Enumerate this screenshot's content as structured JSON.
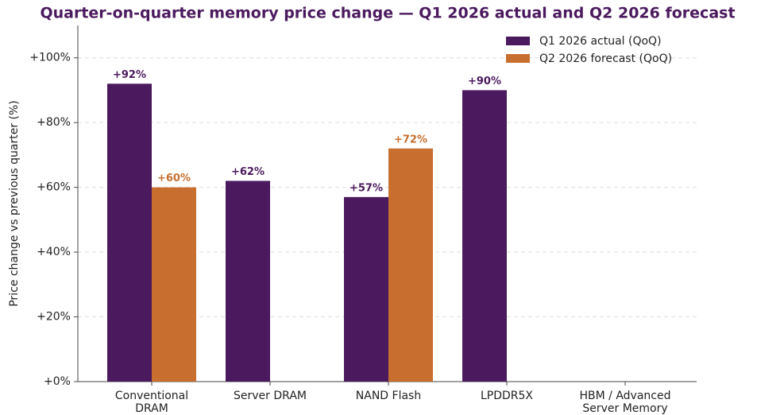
{
  "chart_data": {
    "type": "bar",
    "title": "Quarter-on-quarter memory price change — Q1 2026 actual and Q2 2026 forecast",
    "ylabel": "Price change vs previous quarter (%)",
    "categories": [
      "Conventional DRAM",
      "Server DRAM",
      "NAND Flash",
      "LPDDR5X",
      "HBM / Advanced Server Memory"
    ],
    "series": [
      {
        "name": "Q1 2026 actual (QoQ)",
        "color": "#4b1a5e",
        "values": [
          92,
          62,
          57,
          90,
          null
        ],
        "value_labels": [
          "+92%",
          "+62%",
          "+57%",
          "+90%",
          null
        ]
      },
      {
        "name": "Q2 2026 forecast (QoQ)",
        "color": "#c86f2f",
        "values": [
          60,
          null,
          72,
          null,
          null
        ],
        "value_labels": [
          "+60%",
          null,
          "+72%",
          null,
          null
        ]
      }
    ],
    "ylim": [
      0,
      110
    ],
    "yticks": [
      {
        "value": 0,
        "label": "+0%"
      },
      {
        "value": 20,
        "label": "+20%"
      },
      {
        "value": 40,
        "label": "+40%"
      },
      {
        "value": 60,
        "label": "+60%"
      },
      {
        "value": 80,
        "label": "+80%"
      },
      {
        "value": 100,
        "label": "+100%"
      }
    ],
    "grid": true,
    "legend": "upper right"
  }
}
